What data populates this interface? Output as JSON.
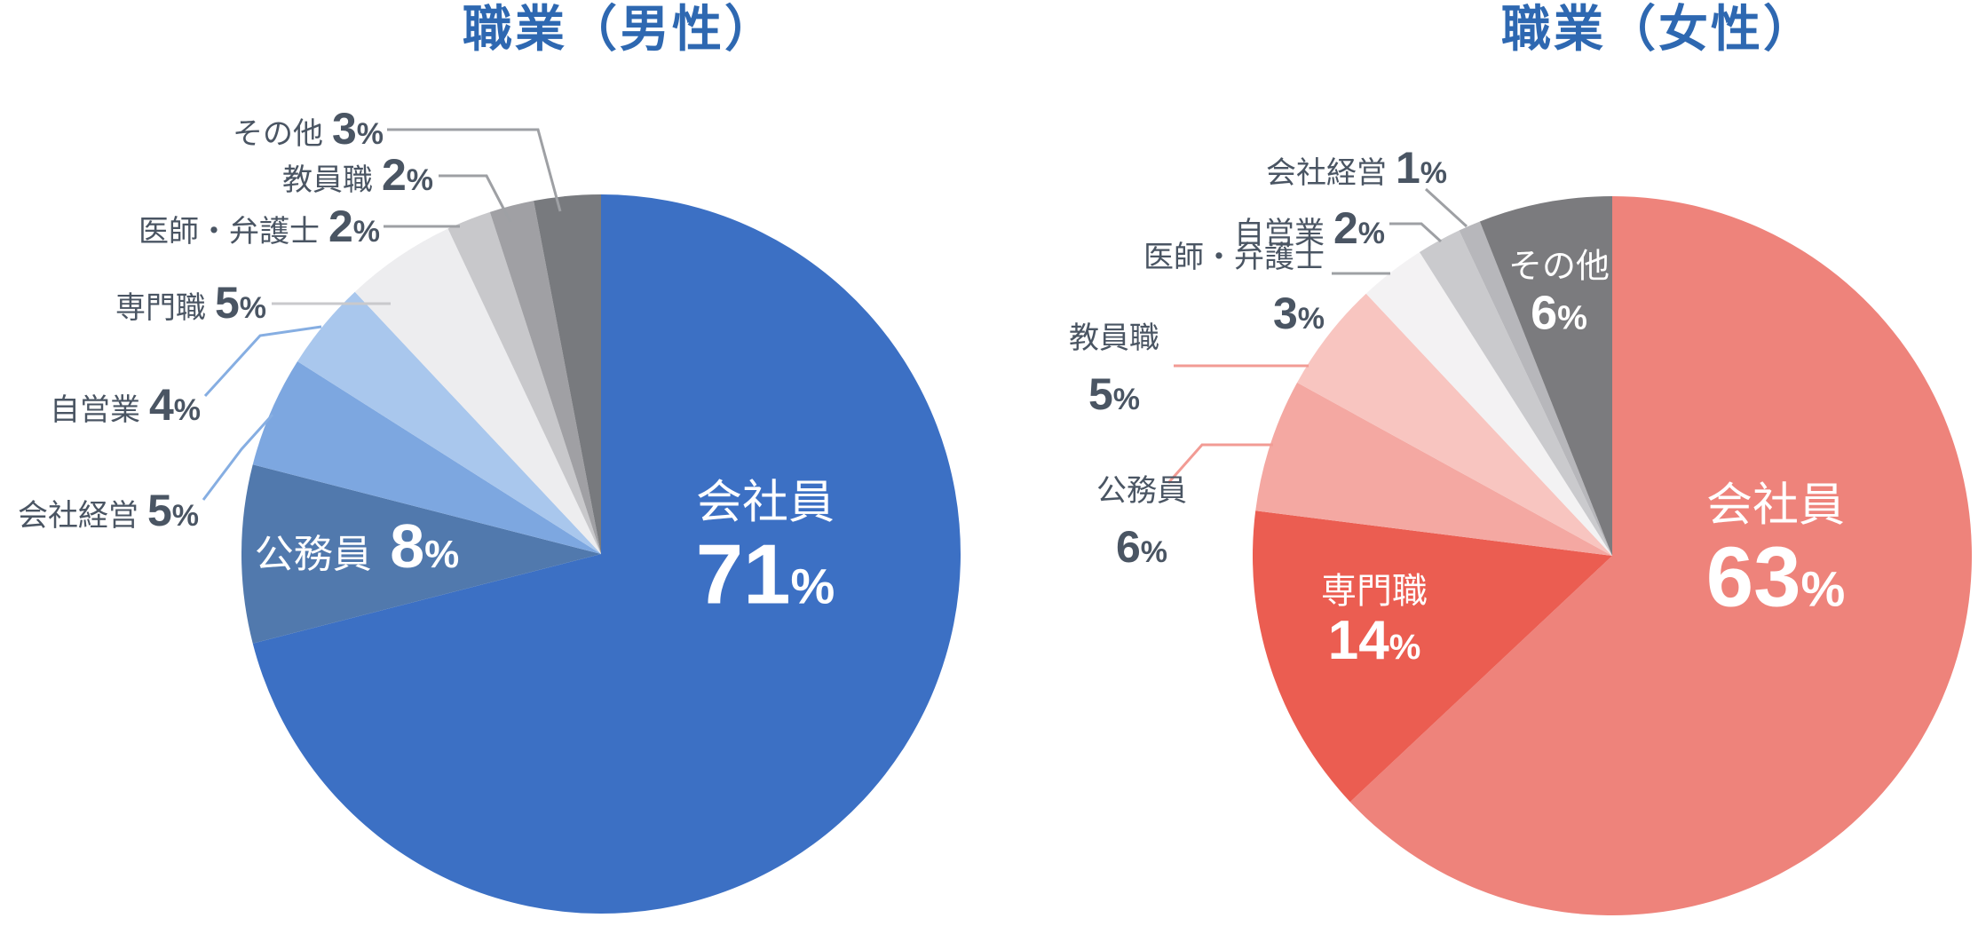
{
  "styles": {
    "title_color": "#2E68B1",
    "outside_label_color": "#4A5563",
    "inside_label_color": "#FFFFFF",
    "background": "#FFFFFF"
  },
  "chart_data": [
    {
      "type": "pie",
      "title": "職業（男性）",
      "unit": "%",
      "start_angle": "top",
      "direction": "clockwise",
      "legend": "none",
      "categories": [
        "会社員",
        "公務員",
        "会社経営",
        "自営業",
        "専門職",
        "医師・弁護士",
        "教員職",
        "その他"
      ],
      "values": [
        71,
        8,
        5,
        4,
        5,
        2,
        2,
        3
      ],
      "colors": [
        "#3C70C4",
        "#5179AD",
        "#7DA7E0",
        "#A9C7ED",
        "#EDEDEF",
        "#C8C8CB",
        "#A0A0A4",
        "#787A7E"
      ]
    },
    {
      "type": "pie",
      "title": "職業（女性）",
      "unit": "%",
      "start_angle": "top",
      "direction": "clockwise",
      "legend": "none",
      "categories": [
        "会社員",
        "専門職",
        "公務員",
        "教員職",
        "医師・弁護士",
        "自営業",
        "会社経営",
        "その他"
      ],
      "values": [
        63,
        14,
        6,
        5,
        3,
        2,
        1,
        6
      ],
      "colors": [
        "#EE837B",
        "#EB5D51",
        "#F4A8A2",
        "#F8C5C0",
        "#F3F2F3",
        "#CACACD",
        "#B7B7BB",
        "#7B7B7E"
      ]
    }
  ]
}
